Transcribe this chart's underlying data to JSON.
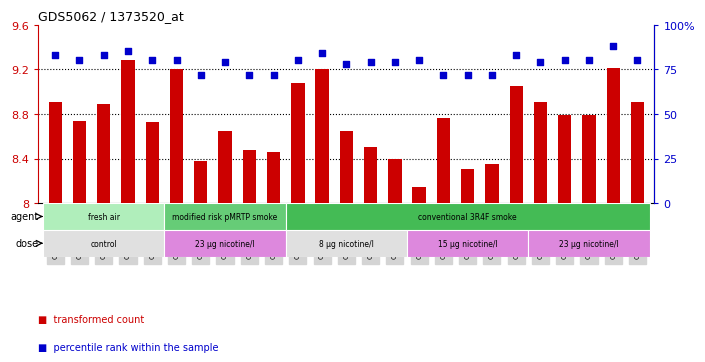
{
  "title": "GDS5062 / 1373520_at",
  "samples": [
    "GSM1217181",
    "GSM1217182",
    "GSM1217183",
    "GSM1217184",
    "GSM1217185",
    "GSM1217186",
    "GSM1217187",
    "GSM1217188",
    "GSM1217189",
    "GSM1217190",
    "GSM1217196",
    "GSM1217197",
    "GSM1217198",
    "GSM1217199",
    "GSM1217200",
    "GSM1217191",
    "GSM1217192",
    "GSM1217193",
    "GSM1217194",
    "GSM1217195",
    "GSM1217201",
    "GSM1217202",
    "GSM1217203",
    "GSM1217204",
    "GSM1217205"
  ],
  "bar_values": [
    8.91,
    8.74,
    8.89,
    9.28,
    8.73,
    9.2,
    8.38,
    8.65,
    8.48,
    8.46,
    9.08,
    9.2,
    8.65,
    8.5,
    8.4,
    8.14,
    8.76,
    8.31,
    8.35,
    9.05,
    8.91,
    8.79,
    8.79,
    9.21,
    8.91
  ],
  "percentile_values": [
    83,
    80,
    83,
    85,
    80,
    80,
    72,
    79,
    72,
    72,
    80,
    84,
    78,
    79,
    79,
    80,
    72,
    72,
    72,
    83,
    79,
    80,
    80,
    88,
    80
  ],
  "bar_color": "#cc0000",
  "dot_color": "#0000cc",
  "y_min": 8.0,
  "y_max": 9.6,
  "yticks_left": [
    8.0,
    8.4,
    8.8,
    9.2,
    9.6
  ],
  "ytick_labels_left": [
    "8",
    "8.4",
    "8.8",
    "9.2",
    "9.6"
  ],
  "p_min": 0,
  "p_max": 100,
  "yticks_right": [
    0,
    25,
    50,
    75,
    100
  ],
  "ytick_labels_right": [
    "0",
    "25",
    "50",
    "75",
    "100%"
  ],
  "grid_lines": [
    8.4,
    8.8,
    9.2
  ],
  "agent_groups": [
    {
      "label": "fresh air",
      "start": 0,
      "end": 5,
      "color": "#b0eebb"
    },
    {
      "label": "modified risk pMRTP smoke",
      "start": 5,
      "end": 10,
      "color": "#66cc77"
    },
    {
      "label": "conventional 3R4F smoke",
      "start": 10,
      "end": 25,
      "color": "#44bb55"
    }
  ],
  "dose_groups": [
    {
      "label": "control",
      "start": 0,
      "end": 5,
      "color": "#e0e0e0"
    },
    {
      "label": "23 μg nicotine/l",
      "start": 5,
      "end": 10,
      "color": "#dd88dd"
    },
    {
      "label": "8 μg nicotine/l",
      "start": 10,
      "end": 15,
      "color": "#e0e0e0"
    },
    {
      "label": "15 μg nicotine/l",
      "start": 15,
      "end": 20,
      "color": "#dd88dd"
    },
    {
      "label": "23 μg nicotine/l",
      "start": 20,
      "end": 25,
      "color": "#dd88dd"
    }
  ],
  "legend_count": "transformed count",
  "legend_percentile": "percentile rank within the sample",
  "tick_bg_color": "#d4d4d4"
}
